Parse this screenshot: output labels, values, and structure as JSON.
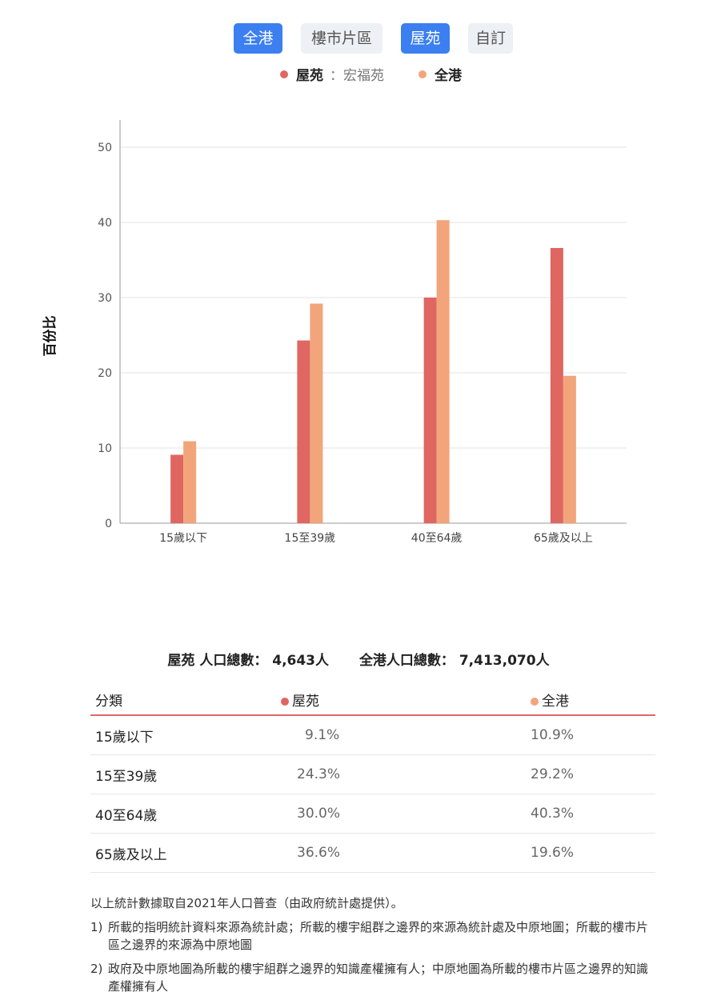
{
  "tabs": [
    {
      "label": "全港",
      "active": true
    },
    {
      "label": "樓市片區",
      "active": false
    },
    {
      "label": "屋苑",
      "active": true
    },
    {
      "label": "自訂",
      "active": false
    }
  ],
  "legend": {
    "estate_label": "屋苑",
    "estate_name": "：宏福苑",
    "hk_label": "全港"
  },
  "colors": {
    "estate": "#e06661",
    "hk": "#f2a57a",
    "tab_active": "#3b7ff0"
  },
  "chart_data": {
    "type": "bar",
    "categories": [
      "15歲以下",
      "15至39歲",
      "40至64歲",
      "65歲及以上"
    ],
    "series": [
      {
        "name": "屋苑",
        "values": [
          9.1,
          24.3,
          30.0,
          36.6
        ]
      },
      {
        "name": "全港",
        "values": [
          10.9,
          29.2,
          40.3,
          19.6
        ]
      }
    ],
    "ylabel": "百份比",
    "yticks": [
      0,
      10,
      20,
      30,
      40,
      50
    ],
    "ylim": [
      0,
      50
    ],
    "grid": true,
    "legend": "top"
  },
  "totals": {
    "estate": "屋苑 人口總數： 4,643人",
    "hk": "全港人口總數： 7,413,070人"
  },
  "table": {
    "headers": [
      "分類",
      "屋苑",
      "全港"
    ],
    "rows": [
      [
        "15歲以下",
        "9.1%",
        "10.9%"
      ],
      [
        "15至39歲",
        "24.3%",
        "29.2%"
      ],
      [
        "40至64歲",
        "30.0%",
        "40.3%"
      ],
      [
        "65歲及以上",
        "36.6%",
        "19.6%"
      ]
    ]
  },
  "notes": {
    "intro": "以上統計數據取自2021年人口普查（由政府統計處提供）。",
    "items": [
      {
        "num": "1)",
        "text": "所載的指明統計資料來源為統計處；所載的樓宇組群之邊界的來源為統計處及中原地圖；所載的樓市片區之邊界的來源為中原地圖"
      },
      {
        "num": "2)",
        "text": "政府及中原地圖為所載的樓宇組群之邊界的知識產權擁有人；中原地圖為所載的樓市片區之邊界的知識產權擁有人"
      }
    ]
  }
}
